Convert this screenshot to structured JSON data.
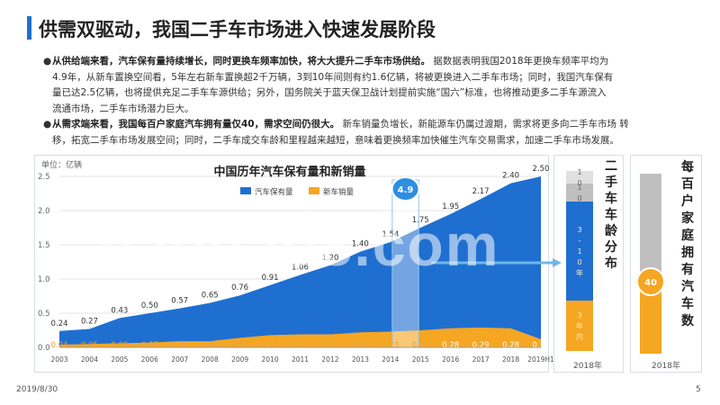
{
  "slide": {
    "title": "供需双驱动，我国二手车市场进入快速发展阶段",
    "bullets": [
      {
        "bold": "从供给端来看，汽车保有量持续增长，同时更换车频率加快，将大大提升二手车市场供给。",
        "lines": [
          "据数据表明我国2018年更换车频率平均为",
          "4.9年，从新车置换空间看，5年左右新车置换超2千万辆，3到10年间则有约1.6亿辆，将被更换进入二手车市场；同时，我国汽车保有",
          "量已达2.5亿辆，也将提供充足二手车车源供给；另外，国务院关于蓝天保卫战计划提前实施“国六”标准，也将推动更多二手车源流入",
          "流通市场，二手车市场潜力巨大。"
        ]
      },
      {
        "bold": "从需求端来看，我国每百户家庭汽车拥有量仅40，需求空间仍很大。",
        "lines": [
          "新车销量负增长，新能源车仍属过渡期，需求将更多向二手车市场 转",
          "移，拓宽二手车市场发展空间；同时，二手车成交车龄和里程越来越短，意味着更换频率加快催生汽车交易需求，加速二手车市场发展。"
        ]
      }
    ],
    "footer_date": "2019/8/30",
    "page_number": "5",
    "watermark": "baogao8.com"
  },
  "chart_data": [
    {
      "type": "area",
      "title": "中国历年汽车保有量和新销量",
      "unit_label": "单位：亿辆",
      "categories": [
        "2003",
        "2004",
        "2005",
        "2006",
        "2007",
        "2008",
        "2009",
        "2010",
        "2011",
        "2012",
        "2013",
        "2014",
        "2015",
        "2016",
        "2017",
        "2018",
        "2019H1"
      ],
      "series": [
        {
          "name": "汽车保有量",
          "values": [
            0.24,
            0.27,
            0.43,
            0.5,
            0.57,
            0.65,
            0.76,
            0.91,
            1.06,
            1.2,
            1.4,
            1.54,
            1.75,
            1.95,
            2.17,
            2.4,
            2.5
          ],
          "color": "#1f6fd0"
        },
        {
          "name": "新车销量",
          "values": [
            0.04,
            0.05,
            0.06,
            0.07,
            0.09,
            0.09,
            0.14,
            0.18,
            0.19,
            0.19,
            0.22,
            0.23,
            0.25,
            0.28,
            0.29,
            0.28,
            0.12
          ],
          "color": "#f5a623"
        }
      ],
      "yticks": [
        "0.0",
        "0.5",
        "1.0",
        "1.5",
        "2.0",
        "2.5"
      ],
      "ylim": [
        0,
        2.5
      ],
      "highlight": {
        "value": "4.9",
        "range": [
          "2014",
          "2015"
        ]
      }
    },
    {
      "type": "bar",
      "title": "二手车车龄分布",
      "xlabel": "2018年",
      "segments": [
        {
          "label": "3年内",
          "share": 0.28,
          "color": "#f5a623"
        },
        {
          "label": "3-10年",
          "share": 0.55,
          "color": "#1f6fd0"
        },
        {
          "label": "10",
          "share": 0.1,
          "color": "#bfbfbf"
        },
        {
          "label": "10",
          "share": 0.07,
          "color": "#e0e0e0"
        }
      ]
    },
    {
      "type": "bar",
      "title": "每百户家庭拥有汽车数",
      "xlabel": "2018年",
      "value": 40,
      "value_label": "40",
      "max": 100,
      "colors": {
        "fill": "#f5a623",
        "track": "#bfbfbf",
        "marker": "#f5a623"
      }
    }
  ]
}
